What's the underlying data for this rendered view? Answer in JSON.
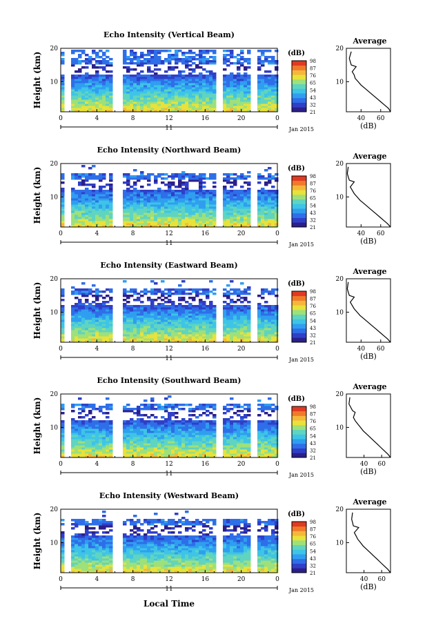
{
  "x_axis_label": "Local Time",
  "date_label": "Jan 2015",
  "day_label": "11",
  "colorbar_unit": "(dB)",
  "colorbar_ticks": [
    "21",
    "32",
    "43",
    "54",
    "65",
    "76",
    "87",
    "98"
  ],
  "colorbar_colors": [
    "#2b1f8a",
    "#2f3fc8",
    "#2e6ee8",
    "#2f9ef0",
    "#3ec4e6",
    "#5fd4c0",
    "#9ee07a",
    "#e8e23a",
    "#f5b73a",
    "#f07a2a",
    "#e03a22"
  ],
  "avg_title": "Average",
  "avg_xlabel": "(dB)",
  "chart_data": [
    {
      "type": "heatmap",
      "title": "Echo Intensity (Vertical Beam)",
      "ylabel": "Height (km)",
      "x_ticks": [
        "0",
        "4",
        "8",
        "12",
        "16",
        "20",
        "0"
      ],
      "y_ticks": [
        "10",
        "20"
      ],
      "xlim": [
        0,
        24
      ],
      "ylim": [
        1,
        20
      ],
      "avg_profile": {
        "x_ticks": [
          "40",
          "60"
        ],
        "y_ticks": [
          "10",
          "20"
        ],
        "xlim": [
          25,
          70
        ],
        "ylim": [
          1,
          20
        ],
        "x": [
          70,
          68,
          64,
          60,
          56,
          52,
          48,
          44,
          40,
          37,
          34,
          33,
          31,
          35,
          30,
          29,
          28,
          30
        ],
        "y": [
          1,
          2,
          3,
          4,
          5,
          6,
          7,
          8,
          9,
          10,
          11,
          12,
          13,
          14.5,
          15,
          16,
          17,
          19
        ]
      }
    },
    {
      "type": "heatmap",
      "title": "Echo Intensity (Northward Beam)",
      "ylabel": "Height (km)",
      "x_ticks": [
        "0",
        "4",
        "8",
        "12",
        "16",
        "20",
        "0"
      ],
      "y_ticks": [
        "10",
        "20"
      ],
      "xlim": [
        0,
        24
      ],
      "ylim": [
        1,
        20
      ],
      "avg_profile": {
        "x_ticks": [
          "40",
          "60"
        ],
        "y_ticks": [
          "10",
          "20"
        ],
        "xlim": [
          25,
          70
        ],
        "ylim": [
          1,
          20
        ],
        "x": [
          70,
          67,
          63,
          59,
          55,
          51,
          47,
          43,
          39,
          36,
          33,
          31,
          29,
          33,
          28,
          27,
          26,
          27
        ],
        "y": [
          1,
          2,
          3,
          4,
          5,
          6,
          7,
          8,
          9,
          10,
          11,
          12,
          13,
          14.5,
          15,
          16,
          17,
          19
        ]
      }
    },
    {
      "type": "heatmap",
      "title": "Echo Intensity (Eastward Beam)",
      "ylabel": "Height (km)",
      "x_ticks": [
        "0",
        "4",
        "8",
        "12",
        "16",
        "20",
        "0"
      ],
      "y_ticks": [
        "10",
        "20"
      ],
      "xlim": [
        0,
        24
      ],
      "ylim": [
        1,
        20
      ],
      "avg_profile": {
        "x_ticks": [
          "40",
          "60"
        ],
        "y_ticks": [
          "10",
          "20"
        ],
        "xlim": [
          25,
          70
        ],
        "ylim": [
          1,
          20
        ],
        "x": [
          70,
          67,
          63,
          59,
          55,
          51,
          47,
          43,
          39,
          36,
          33,
          31,
          29,
          33,
          28,
          27,
          26,
          27
        ],
        "y": [
          1,
          2,
          3,
          4,
          5,
          6,
          7,
          8,
          9,
          10,
          11,
          12,
          13,
          14.5,
          15,
          16,
          17,
          19
        ]
      }
    },
    {
      "type": "heatmap",
      "title": "Echo Intensity (Southward Beam)",
      "ylabel": "Height (km)",
      "x_ticks": [
        "0",
        "4",
        "8",
        "12",
        "16",
        "20",
        "0"
      ],
      "y_ticks": [
        "10",
        "20"
      ],
      "xlim": [
        0,
        24
      ],
      "ylim": [
        1,
        20
      ],
      "avg_profile": {
        "x_ticks": [
          "40",
          "60"
        ],
        "y_ticks": [
          "10",
          "20"
        ],
        "xlim": [
          20,
          70
        ],
        "ylim": [
          1,
          20
        ],
        "x": [
          70,
          67,
          63,
          59,
          55,
          51,
          47,
          43,
          39,
          36,
          33,
          30,
          28,
          30,
          27,
          25,
          23,
          24
        ],
        "y": [
          1,
          2,
          3,
          4,
          5,
          6,
          7,
          8,
          9,
          10,
          11,
          12,
          13,
          14.5,
          15,
          16,
          17,
          19
        ]
      }
    },
    {
      "type": "heatmap",
      "title": "Echo Intensity (Westward Beam)",
      "ylabel": "Height (km)",
      "x_ticks": [
        "0",
        "4",
        "8",
        "12",
        "16",
        "20",
        "0"
      ],
      "y_ticks": [
        "10",
        "20"
      ],
      "xlim": [
        0,
        24
      ],
      "ylim": [
        1,
        20
      ],
      "avg_profile": {
        "x_ticks": [
          "40",
          "60"
        ],
        "y_ticks": [
          "10",
          "20"
        ],
        "xlim": [
          20,
          70
        ],
        "ylim": [
          1,
          20
        ],
        "x": [
          70,
          67,
          63,
          59,
          55,
          51,
          47,
          43,
          39,
          36,
          33,
          31,
          29,
          34,
          28,
          27,
          26,
          27
        ],
        "y": [
          1,
          2,
          3,
          4,
          5,
          6,
          7,
          8,
          9,
          10,
          11,
          12,
          13,
          14.5,
          15,
          16,
          17,
          19
        ]
      }
    }
  ]
}
